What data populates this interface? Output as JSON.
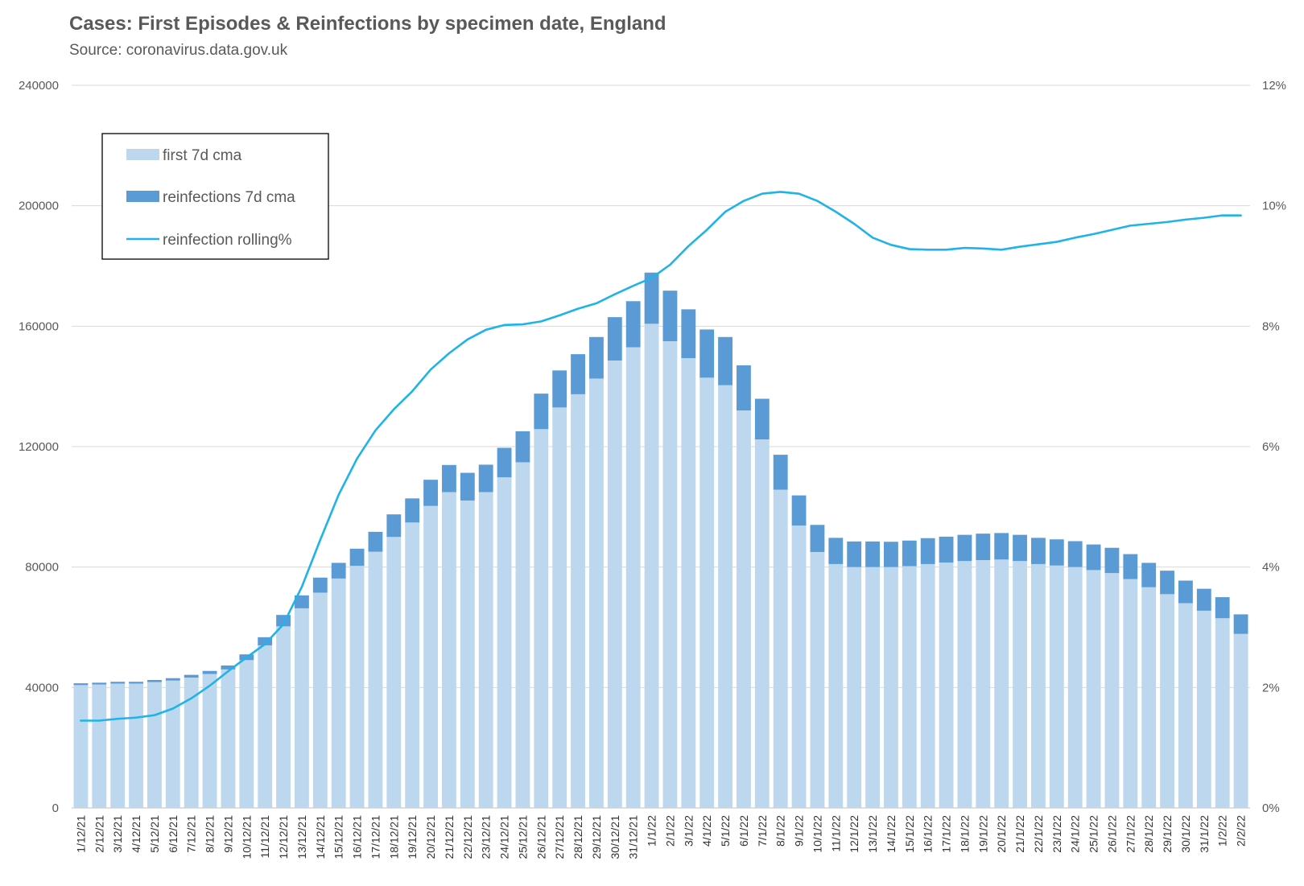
{
  "chart_data": {
    "type": "bar",
    "title": "Cases: First Episodes & Reinfections by specimen date, England",
    "subtitle": "Source: coronavirus.data.gov.uk",
    "stacked": true,
    "categories": [
      "1/12/21",
      "2/12/21",
      "3/12/21",
      "4/12/21",
      "5/12/21",
      "6/12/21",
      "7/12/21",
      "8/12/21",
      "9/12/21",
      "10/12/21",
      "11/12/21",
      "12/12/21",
      "13/12/21",
      "14/12/21",
      "15/12/21",
      "16/12/21",
      "17/12/21",
      "18/12/21",
      "19/12/21",
      "20/12/21",
      "21/12/21",
      "22/12/21",
      "23/12/21",
      "24/12/21",
      "25/12/21",
      "26/12/21",
      "27/12/21",
      "28/12/21",
      "29/12/21",
      "30/12/21",
      "31/12/21",
      "1/1/22",
      "2/1/22",
      "3/1/22",
      "4/1/22",
      "5/1/22",
      "6/1/22",
      "7/1/22",
      "8/1/22",
      "9/1/22",
      "10/1/22",
      "11/1/22",
      "12/1/22",
      "13/1/22",
      "14/1/22",
      "15/1/22",
      "16/1/22",
      "17/1/22",
      "18/1/22",
      "19/1/22",
      "20/1/22",
      "21/1/22",
      "22/1/22",
      "23/1/22",
      "24/1/22",
      "25/1/22",
      "26/1/22",
      "27/1/22",
      "28/1/22",
      "29/1/22",
      "30/1/22",
      "31/1/22",
      "1/2/22",
      "2/2/22"
    ],
    "series": [
      {
        "name": "first 7d cma",
        "type": "bar",
        "axis": "left",
        "color": "#bdd7ee",
        "values": [
          40800,
          41000,
          41300,
          41300,
          41800,
          42300,
          43300,
          44500,
          46000,
          49100,
          54000,
          60300,
          66300,
          71500,
          76200,
          80400,
          85100,
          90000,
          94800,
          100300,
          104900,
          102100,
          104900,
          109800,
          114800,
          125800,
          133000,
          137400,
          142600,
          148600,
          153000,
          160800,
          155000,
          149400,
          142900,
          140400,
          132000,
          122400,
          105700,
          93800,
          85000,
          81000,
          80000,
          80000,
          80000,
          80300,
          81000,
          81500,
          82000,
          82300,
          82500,
          82000,
          81000,
          80500,
          80000,
          79000,
          78000,
          76000,
          73300,
          71000,
          68000,
          65500,
          63000,
          57800
        ]
      },
      {
        "name": "reinfections 7d cma",
        "type": "bar",
        "axis": "left",
        "color": "#5b9bd5",
        "values": [
          600,
          600,
          600,
          600,
          700,
          800,
          900,
          1000,
          1300,
          1900,
          2700,
          3800,
          4300,
          5000,
          5200,
          5700,
          6600,
          7500,
          8000,
          8700,
          9000,
          9200,
          9100,
          9800,
          10300,
          11800,
          12300,
          13300,
          13800,
          14400,
          15300,
          17000,
          16800,
          16200,
          16000,
          16000,
          15000,
          13500,
          11600,
          10000,
          9000,
          8700,
          8500,
          8500,
          8400,
          8500,
          8600,
          8600,
          8700,
          8800,
          8800,
          8700,
          8700,
          8700,
          8600,
          8500,
          8400,
          8300,
          8100,
          7800,
          7500,
          7300,
          7000,
          6500
        ]
      },
      {
        "name": "reinfection rolling%",
        "type": "line",
        "axis": "right",
        "color": "#1fb3e8",
        "values": [
          1.45,
          1.45,
          1.48,
          1.5,
          1.54,
          1.65,
          1.82,
          2.03,
          2.27,
          2.5,
          2.72,
          3.05,
          3.67,
          4.45,
          5.2,
          5.8,
          6.27,
          6.62,
          6.92,
          7.28,
          7.55,
          7.78,
          7.94,
          8.02,
          8.03,
          8.08,
          8.18,
          8.29,
          8.38,
          8.53,
          8.67,
          8.8,
          9.02,
          9.33,
          9.6,
          9.9,
          10.08,
          10.2,
          10.23,
          10.2,
          10.08,
          9.9,
          9.7,
          9.47,
          9.35,
          9.28,
          9.27,
          9.27,
          9.3,
          9.29,
          9.27,
          9.32,
          9.36,
          9.4,
          9.47,
          9.53,
          9.6,
          9.67,
          9.7,
          9.73,
          9.77,
          9.8,
          9.84,
          9.84
        ]
      }
    ],
    "y_left": {
      "min": 0,
      "max": 240000,
      "ticks": [
        "0",
        "40000",
        "80000",
        "120000",
        "160000",
        "200000",
        "240000"
      ]
    },
    "y_right": {
      "min": 0,
      "max": 12,
      "ticks": [
        "0%",
        "2%",
        "4%",
        "6%",
        "8%",
        "10%",
        "12%"
      ]
    },
    "grid": true,
    "legend": {
      "placement": "top-left",
      "entries": [
        "first 7d cma",
        "reinfections 7d cma",
        "reinfection rolling%"
      ]
    }
  }
}
